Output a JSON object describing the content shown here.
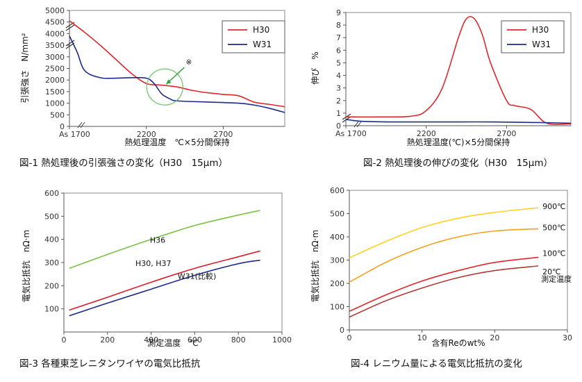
{
  "chart_data": [
    {
      "id": "c1",
      "type": "line",
      "caption": "図-1 熱処理後の引張強さの変化（H30　15μm）",
      "xlabel": "熱処理温度　℃×5分間保持",
      "ylabel": "引張強さ　N/mm²",
      "x_first_tick": "As 1700",
      "xticks": [
        1700,
        2200,
        2700
      ],
      "xlim": [
        1700,
        3100
      ],
      "yticks": [
        0,
        500,
        1000,
        1500,
        2000,
        2500,
        3000,
        3500,
        4000,
        4500,
        5000
      ],
      "ylim": [
        0,
        5000
      ],
      "grid": false,
      "legend_position": "top-right",
      "annotation": "※",
      "series": [
        {
          "name": "H30",
          "color": "#e0262b",
          "points": [
            [
              1700,
              4550
            ],
            [
              1800,
              4050
            ],
            [
              1900,
              3500
            ],
            [
              2000,
              2900
            ],
            [
              2100,
              2300
            ],
            [
              2200,
              1850
            ],
            [
              2300,
              1780
            ],
            [
              2400,
              1700
            ],
            [
              2500,
              1550
            ],
            [
              2600,
              1450
            ],
            [
              2700,
              1380
            ],
            [
              2800,
              1320
            ],
            [
              2900,
              1050
            ],
            [
              3000,
              950
            ],
            [
              3100,
              850
            ]
          ]
        },
        {
          "name": "W31",
          "color": "#1c2a8a",
          "points": [
            [
              1700,
              3900
            ],
            [
              1750,
              3200
            ],
            [
              1800,
              2400
            ],
            [
              1900,
              2100
            ],
            [
              2000,
              2080
            ],
            [
              2100,
              2100
            ],
            [
              2200,
              2080
            ],
            [
              2250,
              1850
            ],
            [
              2300,
              1400
            ],
            [
              2350,
              1200
            ],
            [
              2400,
              1100
            ],
            [
              2600,
              1050
            ],
            [
              2800,
              1000
            ],
            [
              2900,
              920
            ],
            [
              3000,
              780
            ],
            [
              3100,
              600
            ]
          ]
        }
      ]
    },
    {
      "id": "c2",
      "type": "line",
      "caption": "図-2 熱処理後の伸びの変化（H30　15μm）",
      "xlabel": "熱処理温度(℃)×5分間保持",
      "ylabel": "伸び　%",
      "x_first_tick": "As 1700",
      "xticks": [
        1700,
        2200,
        2700
      ],
      "xlim": [
        1700,
        3100
      ],
      "yticks": [
        0,
        1,
        2,
        3,
        4,
        5,
        6,
        7,
        8,
        9
      ],
      "ylim": [
        0,
        9
      ],
      "grid": false,
      "legend_position": "top-right",
      "series": [
        {
          "name": "H30",
          "color": "#e0262b",
          "points": [
            [
              1700,
              0.7
            ],
            [
              1900,
              0.7
            ],
            [
              2100,
              0.75
            ],
            [
              2200,
              1.2
            ],
            [
              2300,
              3.0
            ],
            [
              2400,
              7.0
            ],
            [
              2450,
              8.5
            ],
            [
              2500,
              8.5
            ],
            [
              2550,
              7.2
            ],
            [
              2600,
              5.0
            ],
            [
              2700,
              2.0
            ],
            [
              2750,
              1.6
            ],
            [
              2850,
              1.3
            ],
            [
              2950,
              0.2
            ],
            [
              3100,
              0.15
            ]
          ]
        },
        {
          "name": "W31",
          "color": "#1c2a8a",
          "points": [
            [
              1700,
              0.5
            ],
            [
              1800,
              0.35
            ],
            [
              2000,
              0.3
            ],
            [
              2300,
              0.3
            ],
            [
              2600,
              0.3
            ],
            [
              2900,
              0.25
            ],
            [
              3100,
              0.2
            ]
          ]
        }
      ]
    },
    {
      "id": "c3",
      "type": "line",
      "caption": "図-3 各種東芝レニタンワイヤの電気比抵抗",
      "xlabel": "測定温度　℃",
      "ylabel": "電気比抵抗　nΩ·m",
      "xticks": [
        0,
        200,
        400,
        600,
        800,
        1000
      ],
      "xlim": [
        0,
        1000
      ],
      "yticks": [
        100,
        200,
        300,
        400,
        500,
        600
      ],
      "ylim": [
        0,
        600
      ],
      "grid": false,
      "series": [
        {
          "name": "H36",
          "color": "#7cc043",
          "label_at": [
            430,
            385
          ],
          "points": [
            [
              25,
              275
            ],
            [
              200,
              335
            ],
            [
              400,
              400
            ],
            [
              600,
              460
            ],
            [
              800,
              505
            ],
            [
              900,
              525
            ]
          ]
        },
        {
          "name": "H30, H37",
          "color": "#d91e2a",
          "label_at": [
            410,
            285
          ],
          "points": [
            [
              25,
              95
            ],
            [
              200,
              150
            ],
            [
              400,
              215
            ],
            [
              600,
              275
            ],
            [
              800,
              325
            ],
            [
              900,
              350
            ]
          ]
        },
        {
          "name": "W31(比較)",
          "color": "#1c2a8a",
          "label_at": [
            610,
            230
          ],
          "points": [
            [
              25,
              70
            ],
            [
              200,
              125
            ],
            [
              400,
              185
            ],
            [
              600,
              245
            ],
            [
              800,
              295
            ],
            [
              900,
              310
            ]
          ]
        }
      ]
    },
    {
      "id": "c4",
      "type": "line",
      "caption": "図-4 レニウム量による電気比抵抗の変化",
      "xlabel": "含有Reのwt%",
      "ylabel": "電気比抵抗　nΩ·m",
      "xticks": [
        0,
        10,
        20,
        30
      ],
      "xlim": [
        0,
        30
      ],
      "yticks": [
        0,
        100,
        200,
        300,
        400,
        500,
        600
      ],
      "ylim": [
        0,
        600
      ],
      "grid": false,
      "annotation": "測定温度",
      "series": [
        {
          "name": "900℃",
          "color": "#ffd21f",
          "label_color": "#1c2a8a",
          "points": [
            [
              0,
              310
            ],
            [
              5,
              380
            ],
            [
              10,
              440
            ],
            [
              15,
              480
            ],
            [
              20,
              505
            ],
            [
              26,
              525
            ]
          ]
        },
        {
          "name": "500℃",
          "color": "#f5a01a",
          "label_color": "#1c2a8a",
          "points": [
            [
              0,
              205
            ],
            [
              5,
              290
            ],
            [
              10,
              355
            ],
            [
              15,
              400
            ],
            [
              20,
              425
            ],
            [
              26,
              435
            ]
          ]
        },
        {
          "name": "100℃",
          "color": "#e0262b",
          "label_color": "#1c2a8a",
          "points": [
            [
              0,
              80
            ],
            [
              5,
              150
            ],
            [
              10,
              210
            ],
            [
              15,
              255
            ],
            [
              20,
              290
            ],
            [
              26,
              312
            ]
          ]
        },
        {
          "name": "20℃",
          "color": "#b13a35",
          "label_color": "#1c2a8a",
          "points": [
            [
              0,
              55
            ],
            [
              5,
              125
            ],
            [
              10,
              180
            ],
            [
              15,
              225
            ],
            [
              20,
              255
            ],
            [
              26,
              275
            ]
          ]
        }
      ]
    }
  ]
}
